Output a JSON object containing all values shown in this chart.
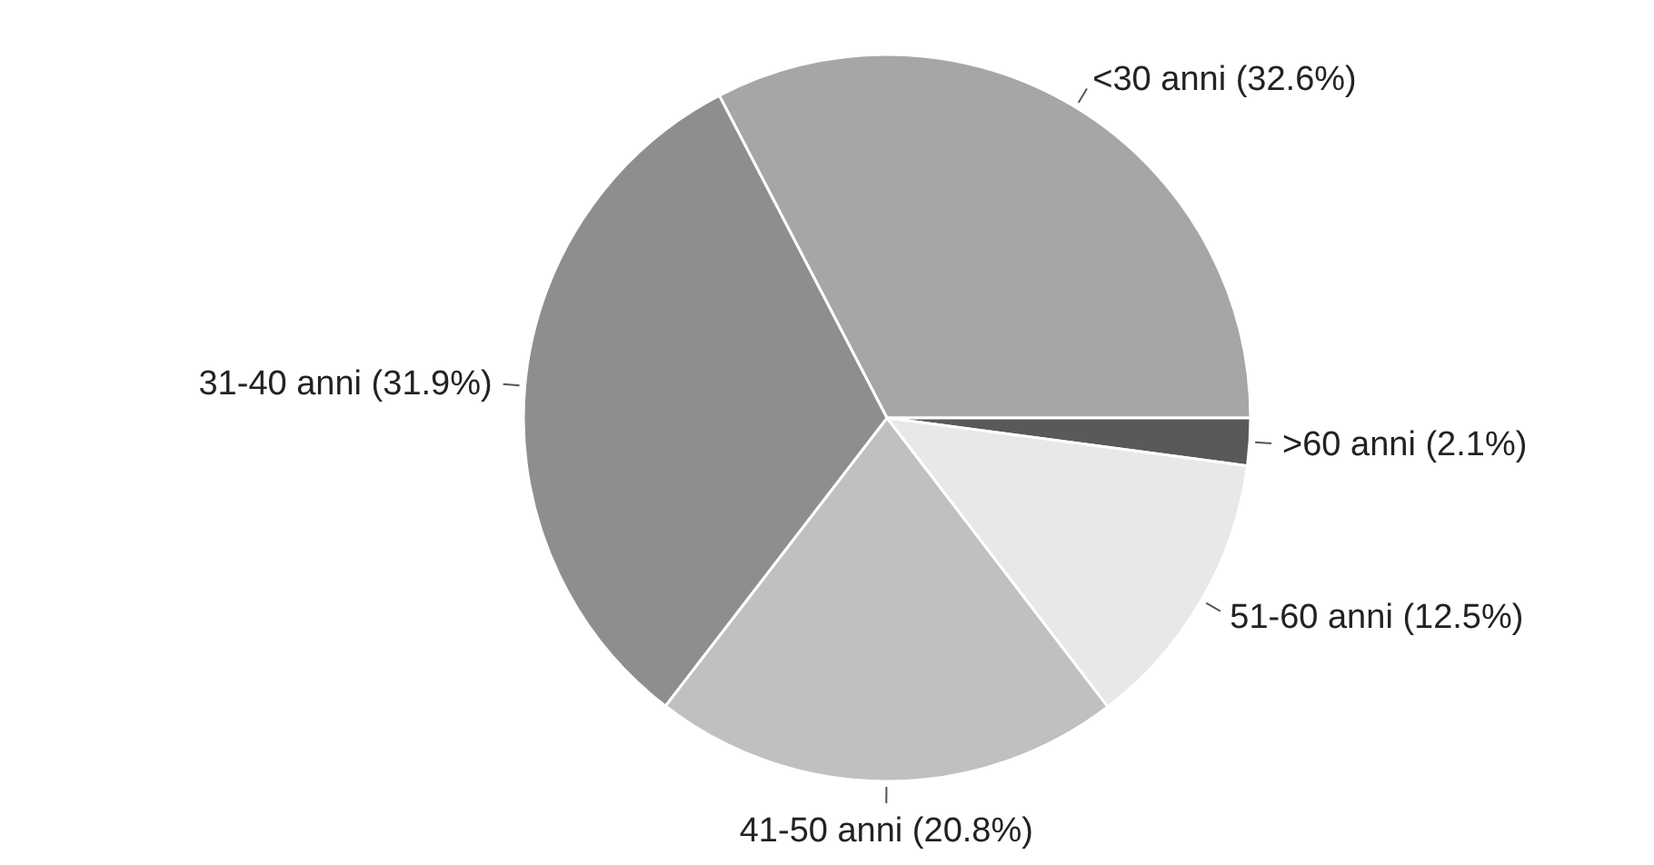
{
  "chart_data": {
    "type": "pie",
    "categories": [
      "<30 anni",
      ">60 anni",
      "51-60 anni",
      "41-50 anni",
      "31-40 anni"
    ],
    "values": [
      32.6,
      2.1,
      12.5,
      20.8,
      31.9
    ],
    "value_labels": [
      "(32.6%)",
      "(2.1%)",
      "(12.5%)",
      "(20.8%)",
      "(31.9%)"
    ],
    "colors": [
      "#a6a6a6",
      "#595959",
      "#e8e8e8",
      "#c0c0c0",
      "#8e8e8e"
    ]
  }
}
